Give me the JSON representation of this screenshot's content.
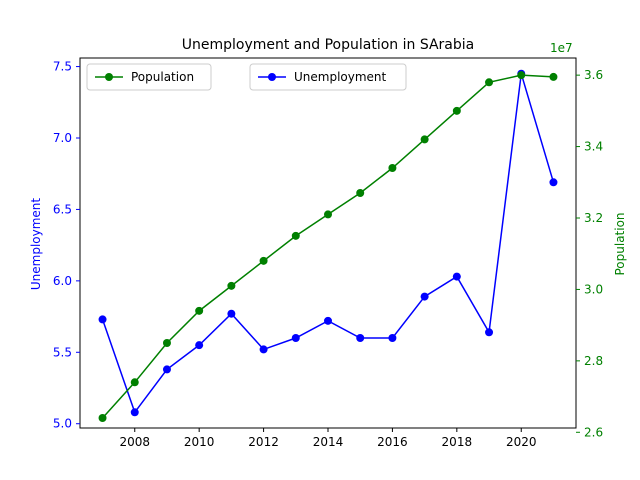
{
  "chart_data": {
    "type": "line",
    "title": "Unemployment and Population in SArabia",
    "x": [
      2007,
      2008,
      2009,
      2010,
      2011,
      2012,
      2013,
      2014,
      2015,
      2016,
      2017,
      2018,
      2019,
      2020,
      2021
    ],
    "xticks": [
      2008,
      2010,
      2012,
      2014,
      2016,
      2018,
      2020
    ],
    "xlim": [
      2006.3,
      2021.7
    ],
    "grid": false,
    "axes": {
      "left": {
        "label": "Unemployment",
        "color": "#0000ff",
        "ylim": [
          4.97,
          7.56
        ],
        "ticks": [
          "5.0",
          "5.5",
          "6.0",
          "6.5",
          "7.0",
          "7.5"
        ]
      },
      "right": {
        "label": "Population",
        "color": "#008000",
        "ylim": [
          2.612,
          3.648
        ],
        "ticks": [
          "2.6",
          "2.8",
          "3.0",
          "3.2",
          "3.4",
          "3.6"
        ],
        "offset_text": "1e7"
      }
    },
    "series": [
      {
        "name": "Unemployment",
        "axis": "left",
        "color": "#0000ff",
        "values": [
          5.73,
          5.08,
          5.38,
          5.55,
          5.77,
          5.52,
          5.6,
          5.72,
          5.6,
          5.6,
          5.89,
          6.03,
          5.64,
          7.45,
          6.69
        ]
      },
      {
        "name": "Population",
        "axis": "right",
        "color": "#008000",
        "values": [
          2.64,
          2.74,
          2.85,
          2.94,
          3.01,
          3.08,
          3.15,
          3.21,
          3.27,
          3.34,
          3.42,
          3.5,
          3.58,
          3.6,
          3.595
        ]
      }
    ],
    "legends": [
      {
        "position": "upper-left",
        "series": "Population"
      },
      {
        "position": "upper-center",
        "series": "Unemployment"
      }
    ]
  }
}
